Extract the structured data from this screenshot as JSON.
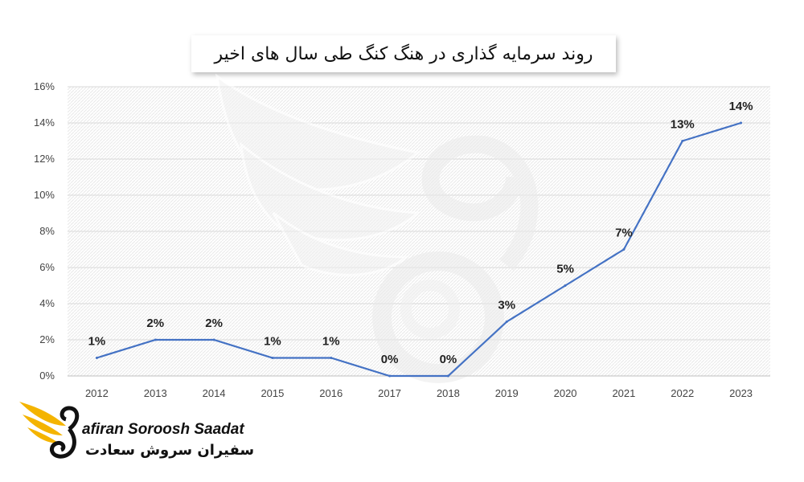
{
  "chart_data": {
    "type": "line",
    "title": "روند سرمایه گذاری در هنگ کنگ طی سال های اخیر",
    "categories": [
      "2012",
      "2013",
      "2014",
      "2015",
      "2016",
      "2017",
      "2018",
      "2019",
      "2020",
      "2021",
      "2022",
      "2023"
    ],
    "series": [
      {
        "values": [
          1,
          2,
          2,
          1,
          1,
          0,
          0,
          3,
          5,
          7,
          13,
          14
        ],
        "labels": [
          "1%",
          "2%",
          "2%",
          "1%",
          "1%",
          "0%",
          "0%",
          "3%",
          "5%",
          "7%",
          "13%",
          "14%"
        ]
      }
    ],
    "ylim": [
      0,
      16
    ],
    "yticks": [
      "0%",
      "2%",
      "4%",
      "6%",
      "8%",
      "10%",
      "12%",
      "14%",
      "16%"
    ],
    "grid": true,
    "colors": {
      "line": "#4472c4",
      "grid": "#d9d9d9",
      "plot_pattern": "#e6e6e6"
    }
  },
  "logo": {
    "name_en": "afiran Soroosh Saadat",
    "name_fa": "سفیران سروش سعادت",
    "icon": "golden-wing-swan-icon",
    "accent": "#f4b400"
  }
}
